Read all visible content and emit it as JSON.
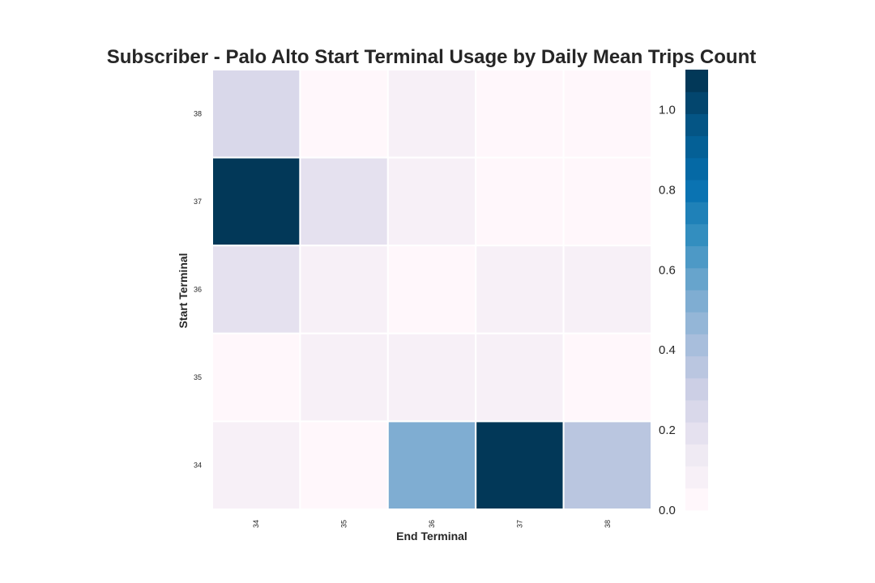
{
  "chart_data": {
    "type": "heatmap",
    "title": "Subscriber - Palo Alto Start Terminal Usage by Daily Mean Trips Count",
    "xlabel": "End Terminal",
    "ylabel": "Start Terminal",
    "x_categories": [
      "34",
      "35",
      "36",
      "37",
      "38"
    ],
    "y_categories": [
      "38",
      "37",
      "36",
      "35",
      "34"
    ],
    "values": [
      [
        0.27,
        0.02,
        0.06,
        0.02,
        0.02
      ],
      [
        1.1,
        0.22,
        0.09,
        0.02,
        0.02
      ],
      [
        0.18,
        0.09,
        0.02,
        0.06,
        0.06
      ],
      [
        0.02,
        0.06,
        0.06,
        0.1,
        0.02
      ],
      [
        0.06,
        0.02,
        0.52,
        1.05,
        0.37
      ]
    ],
    "colorbar": {
      "min": 0.0,
      "max": 1.1,
      "ticks": [
        0.0,
        0.2,
        0.4,
        0.6,
        0.8,
        1.0
      ],
      "tick_labels": [
        "0.0",
        "0.2",
        "0.4",
        "0.6",
        "0.8",
        "1.0"
      ],
      "palette": [
        "#fff7fb",
        "#ece7f2",
        "#d0d1e6",
        "#a6bddb",
        "#74a9cf",
        "#3690c0",
        "#0570b0",
        "#045a8d",
        "#023858"
      ],
      "levels": 20
    },
    "grid": false
  }
}
